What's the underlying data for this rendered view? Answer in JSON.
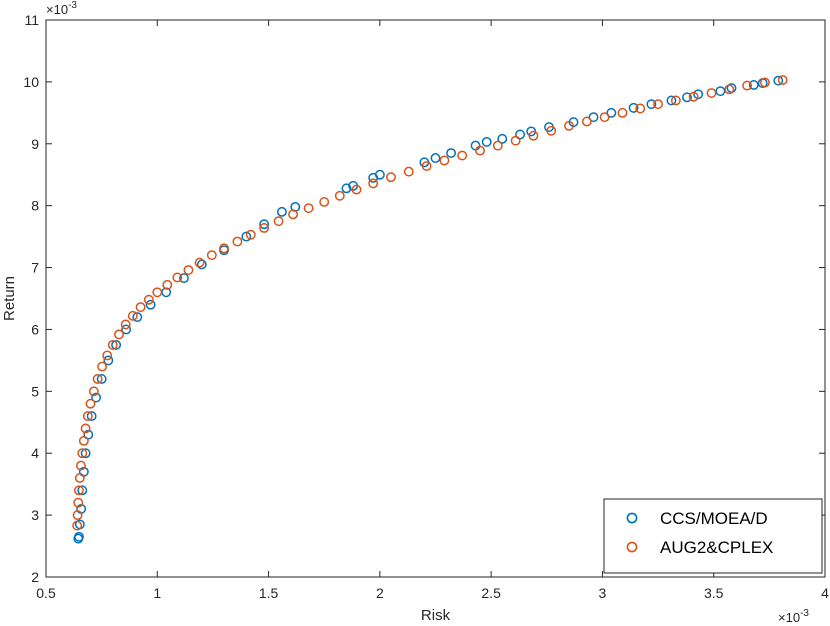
{
  "chart_data": {
    "type": "scatter",
    "xlabel": "Risk",
    "ylabel": "Return",
    "x_exponent_label": "×10^-3",
    "y_exponent_label": "×10^-3",
    "xlim": [
      0.0005,
      0.004
    ],
    "ylim": [
      0.002,
      0.011
    ],
    "x_ticks": [
      0.5,
      1,
      1.5,
      2,
      2.5,
      3,
      3.5,
      4
    ],
    "y_ticks": [
      2,
      3,
      4,
      5,
      6,
      7,
      8,
      9,
      10,
      11
    ],
    "tick_scale": 0.001,
    "grid": false,
    "box": true,
    "legend_position": "bottom-right",
    "series": [
      {
        "name": "CCS/MOEA/D",
        "color": "#0072BD",
        "marker": "open-circle",
        "x": [
          0.000645,
          0.000648,
          0.000652,
          0.000658,
          0.000663,
          0.00067,
          0.000678,
          0.00069,
          0.000705,
          0.000725,
          0.00075,
          0.00078,
          0.000815,
          0.00086,
          0.00091,
          0.00097,
          0.00104,
          0.00112,
          0.0012,
          0.0013,
          0.0014,
          0.00148,
          0.00156,
          0.00162,
          0.00185,
          0.00188,
          0.00197,
          0.002,
          0.0022,
          0.00225,
          0.00232,
          0.00243,
          0.00248,
          0.00255,
          0.00263,
          0.00268,
          0.00276,
          0.00287,
          0.00296,
          0.00304,
          0.00314,
          0.00322,
          0.00331,
          0.00338,
          0.00343,
          0.00353,
          0.00358,
          0.00368,
          0.00372,
          0.00379
        ],
        "y": [
          0.00262,
          0.00265,
          0.00285,
          0.0031,
          0.0034,
          0.0037,
          0.004,
          0.0043,
          0.0046,
          0.0049,
          0.0052,
          0.0055,
          0.00575,
          0.006,
          0.0062,
          0.0064,
          0.0066,
          0.00683,
          0.00705,
          0.00728,
          0.0075,
          0.0077,
          0.0079,
          0.00798,
          0.00828,
          0.00832,
          0.00845,
          0.0085,
          0.0087,
          0.00877,
          0.00885,
          0.00897,
          0.00903,
          0.00908,
          0.00915,
          0.0092,
          0.00927,
          0.00935,
          0.00943,
          0.0095,
          0.00958,
          0.00964,
          0.0097,
          0.00975,
          0.0098,
          0.00985,
          0.0099,
          0.00995,
          0.00998,
          0.01002
        ]
      },
      {
        "name": "AUG2&CPLEX",
        "color": "#D95319",
        "marker": "open-circle",
        "x": [
          0.00064,
          0.000642,
          0.000645,
          0.000648,
          0.000652,
          0.000657,
          0.000663,
          0.00067,
          0.000678,
          0.000688,
          0.0007,
          0.000715,
          0.000732,
          0.000752,
          0.000775,
          0.0008,
          0.000828,
          0.000858,
          0.00089,
          0.000925,
          0.000962,
          0.001,
          0.001045,
          0.00109,
          0.00114,
          0.00119,
          0.001245,
          0.0013,
          0.00136,
          0.00142,
          0.00148,
          0.001545,
          0.00161,
          0.00168,
          0.00175,
          0.00182,
          0.001895,
          0.00197,
          0.00205,
          0.00213,
          0.00221,
          0.00229,
          0.00237,
          0.00245,
          0.00253,
          0.00261,
          0.00269,
          0.00277,
          0.00285,
          0.00293,
          0.00301,
          0.00309,
          0.00317,
          0.00325,
          0.00333,
          0.00341,
          0.00349,
          0.00357,
          0.00365,
          0.00373,
          0.00381
        ],
        "y": [
          0.00283,
          0.003,
          0.0032,
          0.0034,
          0.0036,
          0.0038,
          0.004,
          0.0042,
          0.0044,
          0.0046,
          0.0048,
          0.005,
          0.0052,
          0.0054,
          0.00558,
          0.00575,
          0.00592,
          0.00608,
          0.00622,
          0.00636,
          0.00648,
          0.0066,
          0.00672,
          0.00684,
          0.00696,
          0.00708,
          0.0072,
          0.00731,
          0.00742,
          0.00753,
          0.00764,
          0.00775,
          0.00786,
          0.00796,
          0.00806,
          0.00816,
          0.00826,
          0.00836,
          0.00846,
          0.00855,
          0.00864,
          0.00873,
          0.00881,
          0.00889,
          0.00897,
          0.00905,
          0.00913,
          0.00921,
          0.00929,
          0.00936,
          0.00943,
          0.0095,
          0.00957,
          0.00964,
          0.0097,
          0.00976,
          0.00982,
          0.00988,
          0.00994,
          0.00999,
          0.01003
        ]
      }
    ]
  }
}
